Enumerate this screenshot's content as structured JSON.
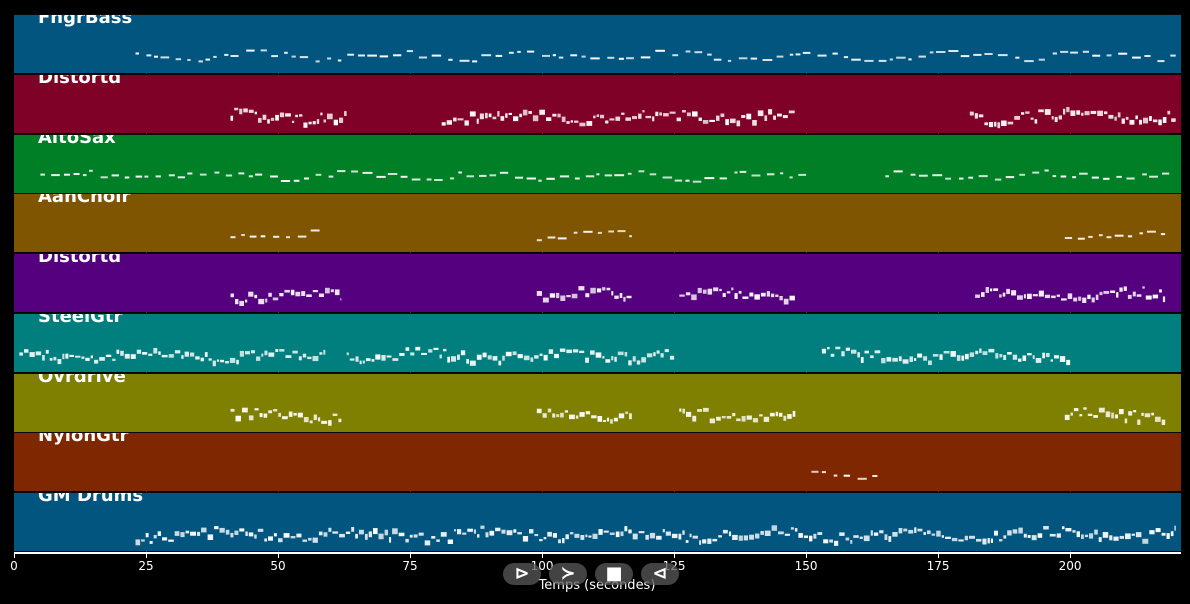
{
  "timeline": {
    "duration_seconds": 221,
    "tracks": [
      {
        "name": "FngrBass",
        "color": "#01557f",
        "active": [
          [
            23,
            200
          ],
          [
            200,
            220
          ]
        ],
        "style": "line"
      },
      {
        "name": "Distortd",
        "color": "#7f0127",
        "active": [
          [
            41,
            63
          ],
          [
            81,
            148
          ],
          [
            181,
            220
          ]
        ],
        "style": "dense"
      },
      {
        "name": "AltoSax",
        "color": "#017f27",
        "active": [
          [
            5,
            150
          ],
          [
            165,
            220
          ]
        ],
        "style": "line"
      },
      {
        "name": "AahChoir",
        "color": "#7f5501",
        "active": [
          [
            41,
            59
          ],
          [
            99,
            117
          ],
          [
            199,
            218
          ]
        ],
        "style": "line"
      },
      {
        "name": "Distortd",
        "color": "#55017f",
        "active": [
          [
            41,
            62
          ],
          [
            99,
            117
          ],
          [
            126,
            148
          ],
          [
            182,
            218
          ]
        ],
        "style": "dense"
      },
      {
        "name": "SteelGtr",
        "color": "#017f7f",
        "active": [
          [
            1,
            59
          ],
          [
            63,
            125
          ],
          [
            153,
            200
          ]
        ],
        "style": "dense"
      },
      {
        "name": "Ovrdrive",
        "color": "#7f7f01",
        "active": [
          [
            41,
            62
          ],
          [
            99,
            117
          ],
          [
            126,
            148
          ],
          [
            199,
            218
          ]
        ],
        "style": "dense"
      },
      {
        "name": "NylonGtr",
        "color": "#7f2701",
        "active": [
          [
            151,
            164
          ]
        ],
        "style": "line"
      },
      {
        "name": "GM Drums",
        "color": "#01557f",
        "active": [
          [
            23,
            220
          ]
        ],
        "style": "dense"
      }
    ]
  },
  "axis": {
    "ticks": [
      "0",
      "25",
      "50",
      "75",
      "100",
      "125",
      "150",
      "175",
      "200"
    ],
    "tick_values": [
      0,
      25,
      50,
      75,
      100,
      125,
      150,
      175,
      200
    ],
    "label": "Temps (secondes)"
  },
  "controls": [
    {
      "name": "play-button",
      "glyph": "⊳"
    },
    {
      "name": "forward-button",
      "glyph": "≻"
    },
    {
      "name": "stop-button",
      "glyph": "■"
    },
    {
      "name": "rewind-button",
      "glyph": "⊲"
    }
  ]
}
